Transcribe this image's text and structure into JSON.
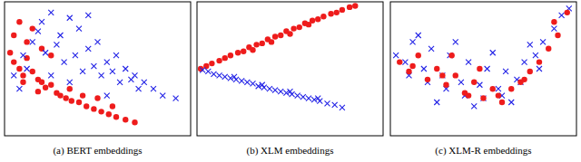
{
  "chart_data": [
    {
      "type": "scatter",
      "title": "(a) BERT embeddings",
      "xlim": [
        0,
        100
      ],
      "ylim": [
        0,
        100
      ],
      "tick_labels": false,
      "series": [
        {
          "color": "#ee1c1c",
          "marker": "circle",
          "x": [
            3,
            5,
            8,
            10,
            12,
            15,
            18,
            20,
            22,
            25,
            28,
            30,
            33,
            36,
            40,
            44,
            48,
            52,
            56,
            60,
            65,
            70,
            5,
            8,
            12,
            15,
            20,
            25,
            10,
            18,
            35,
            42,
            50,
            58
          ],
          "values": [
            62,
            55,
            50,
            45,
            58,
            48,
            42,
            40,
            36,
            38,
            32,
            30,
            28,
            26,
            25,
            22,
            20,
            18,
            16,
            14,
            12,
            10,
            75,
            85,
            70,
            80,
            65,
            60,
            40,
            33,
            35,
            30,
            28,
            22
          ]
        },
        {
          "color": "#2323e6",
          "marker": "x",
          "x": [
            5,
            10,
            15,
            20,
            25,
            30,
            35,
            40,
            45,
            50,
            55,
            60,
            65,
            70,
            75,
            80,
            85,
            92,
            12,
            22,
            32,
            42,
            52,
            62,
            72,
            18,
            28,
            38,
            48,
            58,
            68,
            8,
            45,
            35,
            55,
            25
          ],
          "values": [
            45,
            60,
            70,
            85,
            92,
            75,
            88,
            80,
            65,
            70,
            55,
            60,
            50,
            45,
            40,
            35,
            30,
            28,
            50,
            62,
            55,
            48,
            45,
            40,
            35,
            78,
            68,
            60,
            52,
            48,
            42,
            35,
            90,
            40,
            30,
            45
          ]
        }
      ]
    },
    {
      "type": "scatter",
      "title": "(b) XLM embeddings",
      "xlim": [
        0,
        100
      ],
      "ylim": [
        0,
        100
      ],
      "tick_labels": false,
      "series": [
        {
          "color": "#ee1c1c",
          "marker": "circle",
          "x": [
            2,
            5,
            8,
            12,
            15,
            18,
            22,
            25,
            28,
            32,
            35,
            38,
            42,
            45,
            48,
            52,
            55,
            58,
            62,
            65,
            68,
            72,
            75,
            78,
            82,
            85,
            30,
            40,
            50,
            60
          ],
          "values": [
            50,
            52,
            54,
            56,
            58,
            60,
            62,
            63,
            66,
            68,
            69,
            72,
            74,
            75,
            78,
            80,
            81,
            84,
            86,
            87,
            89,
            91,
            92,
            94,
            96,
            97,
            64,
            70,
            76,
            83
          ]
        },
        {
          "color": "#2323e6",
          "marker": "x",
          "x": [
            3,
            6,
            9,
            12,
            15,
            18,
            21,
            24,
            27,
            30,
            33,
            36,
            39,
            42,
            45,
            48,
            51,
            54,
            57,
            60,
            63,
            66,
            70,
            74,
            78,
            20,
            35,
            50,
            65
          ],
          "values": [
            49,
            48,
            46,
            45,
            44,
            43,
            42,
            41,
            40,
            39,
            37,
            36,
            35,
            34,
            33,
            32,
            31,
            30,
            29,
            28,
            27,
            26,
            24,
            23,
            21,
            44,
            38,
            33,
            28
          ]
        }
      ]
    },
    {
      "type": "scatter",
      "title": "(c) XLM-R embeddings",
      "xlim": [
        0,
        100
      ],
      "ylim": [
        0,
        100
      ],
      "tick_labels": false,
      "series": [
        {
          "color": "#2323e6",
          "marker": "x",
          "x": [
            3,
            8,
            12,
            18,
            22,
            28,
            32,
            38,
            42,
            48,
            52,
            58,
            62,
            68,
            72,
            78,
            82,
            88,
            92,
            96,
            10,
            20,
            30,
            40,
            50,
            60,
            70,
            80,
            15,
            35,
            55,
            75,
            25,
            45,
            65
          ],
          "values": [
            60,
            55,
            70,
            50,
            65,
            45,
            60,
            40,
            55,
            38,
            50,
            35,
            48,
            42,
            55,
            60,
            70,
            80,
            90,
            95,
            45,
            40,
            35,
            30,
            28,
            30,
            40,
            50,
            75,
            70,
            62,
            68,
            25,
            22,
            25
          ]
        },
        {
          "color": "#ee1c1c",
          "marker": "circle",
          "x": [
            5,
            10,
            15,
            20,
            25,
            30,
            35,
            40,
            45,
            50,
            55,
            60,
            65,
            70,
            75,
            80,
            85,
            90,
            12,
            28,
            42,
            58,
            72,
            88,
            95,
            33,
            48
          ],
          "values": [
            55,
            48,
            60,
            42,
            50,
            38,
            45,
            32,
            40,
            28,
            35,
            25,
            35,
            40,
            48,
            55,
            65,
            75,
            52,
            45,
            30,
            30,
            42,
            85,
            92,
            60,
            50
          ]
        }
      ]
    }
  ]
}
